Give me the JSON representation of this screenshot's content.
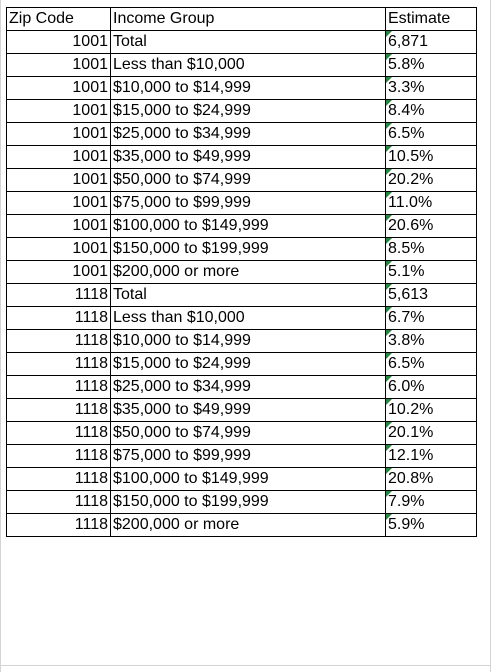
{
  "spreadsheet": {
    "headers": {
      "zip": "Zip Code",
      "group": "Income Group",
      "estimate": "Estimate"
    },
    "rows": [
      {
        "zip": "1001",
        "group": "Total",
        "estimate": "6,871"
      },
      {
        "zip": "1001",
        "group": "Less than $10,000",
        "estimate": "5.8%"
      },
      {
        "zip": "1001",
        "group": "$10,000 to $14,999",
        "estimate": "3.3%"
      },
      {
        "zip": "1001",
        "group": "$15,000 to $24,999",
        "estimate": "8.4%"
      },
      {
        "zip": "1001",
        "group": "$25,000 to $34,999",
        "estimate": "6.5%"
      },
      {
        "zip": "1001",
        "group": "$35,000 to $49,999",
        "estimate": "10.5%"
      },
      {
        "zip": "1001",
        "group": "$50,000 to $74,999",
        "estimate": "20.2%"
      },
      {
        "zip": "1001",
        "group": "$75,000 to $99,999",
        "estimate": "11.0%"
      },
      {
        "zip": "1001",
        "group": "$100,000 to $149,999",
        "estimate": "20.6%"
      },
      {
        "zip": "1001",
        "group": "$150,000 to $199,999",
        "estimate": "8.5%"
      },
      {
        "zip": "1001",
        "group": "$200,000 or more",
        "estimate": "5.1%"
      },
      {
        "zip": "1118",
        "group": "Total",
        "estimate": "5,613"
      },
      {
        "zip": "1118",
        "group": "Less than $10,000",
        "estimate": "6.7%"
      },
      {
        "zip": "1118",
        "group": "$10,000 to $14,999",
        "estimate": "3.8%"
      },
      {
        "zip": "1118",
        "group": "$15,000 to $24,999",
        "estimate": "6.5%"
      },
      {
        "zip": "1118",
        "group": "$25,000 to $34,999",
        "estimate": "6.0%"
      },
      {
        "zip": "1118",
        "group": "$35,000 to $49,999",
        "estimate": "10.2%"
      },
      {
        "zip": "1118",
        "group": "$50,000 to $74,999",
        "estimate": "20.1%"
      },
      {
        "zip": "1118",
        "group": "$75,000 to $99,999",
        "estimate": "12.1%"
      },
      {
        "zip": "1118",
        "group": "$100,000 to $149,999",
        "estimate": "20.8%"
      },
      {
        "zip": "1118",
        "group": "$150,000 to $199,999",
        "estimate": "7.9%"
      },
      {
        "zip": "1118",
        "group": "$200,000 or more",
        "estimate": "5.9%"
      }
    ],
    "colors": {
      "border": "#000000",
      "error_indicator": "#1e8c3a",
      "gridline": "#d4d4d4"
    }
  }
}
